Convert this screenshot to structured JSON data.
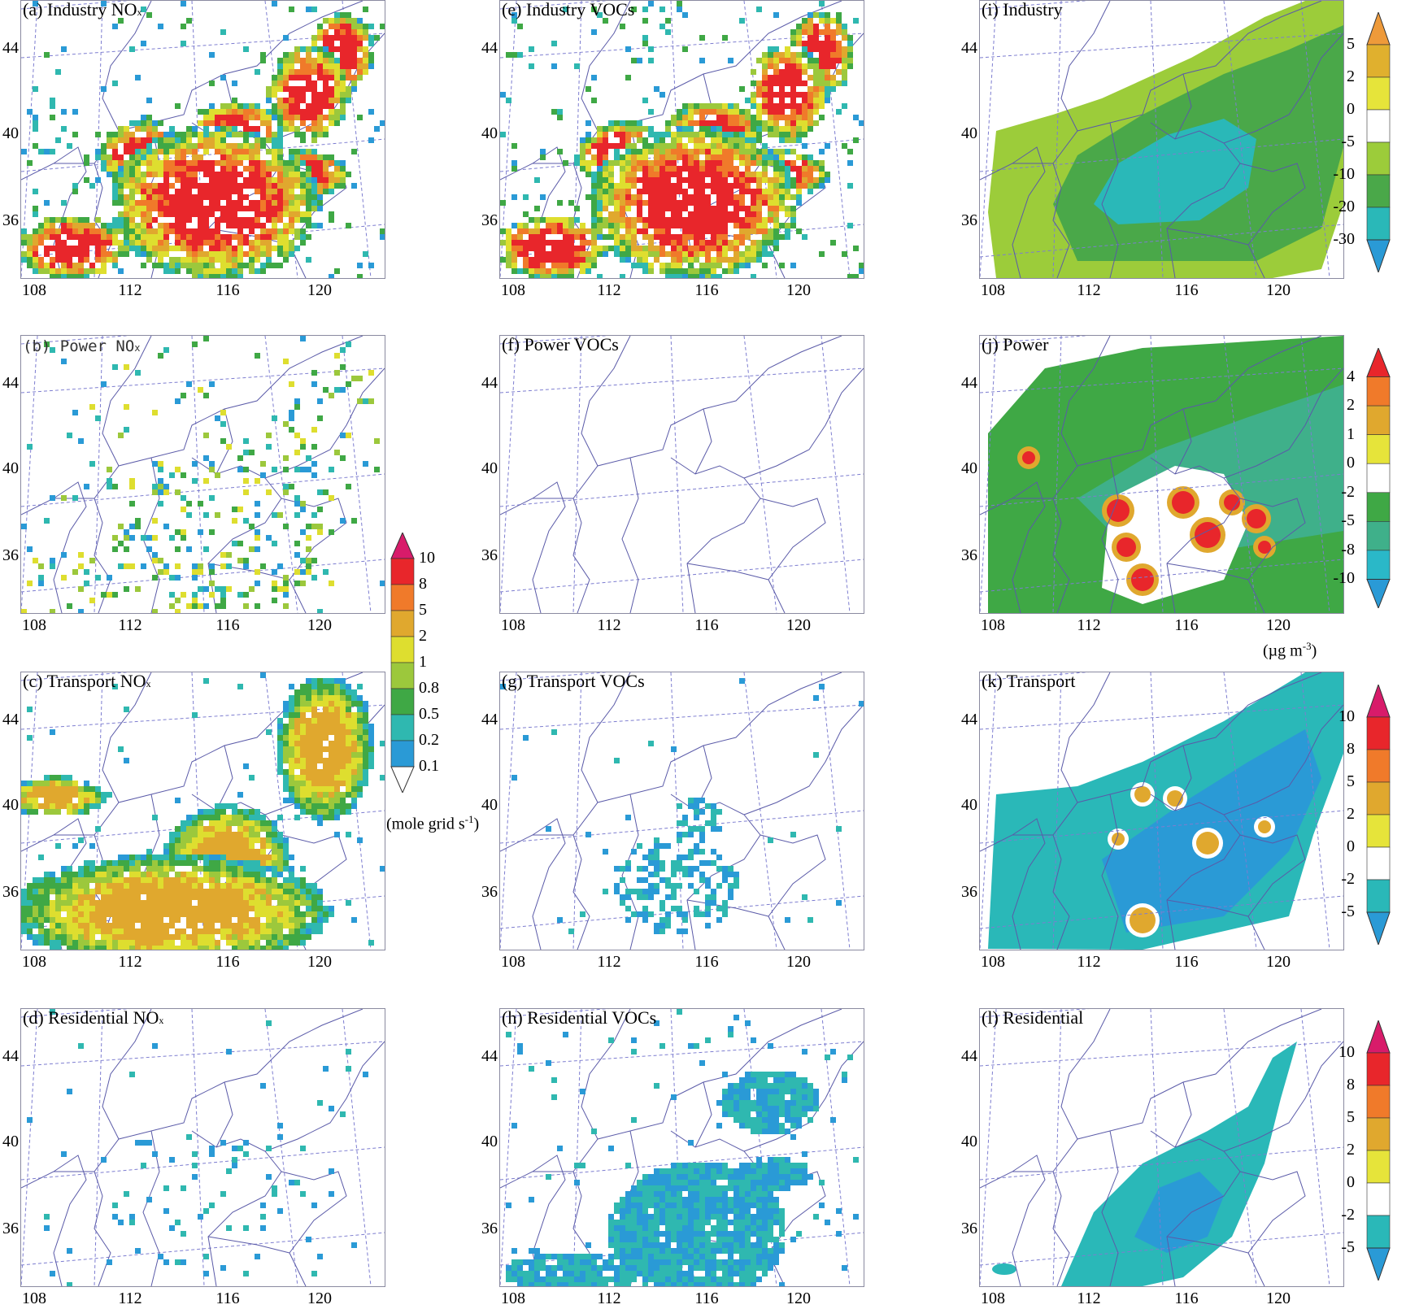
{
  "panels": [
    {
      "key": "a",
      "title": "(a) Industry NO",
      "suffix": "x",
      "kind": "emis_nox",
      "style": "dense"
    },
    {
      "key": "b",
      "title": "(b)  Power NO",
      "suffix": "x",
      "kind": "emis_nox",
      "style": "sparse",
      "mono": true
    },
    {
      "key": "c",
      "title": "(c) Transport NO",
      "suffix": "x",
      "kind": "emis_nox",
      "style": "transport"
    },
    {
      "key": "d",
      "title": "(d) Residential NO",
      "suffix": "x",
      "kind": "emis_nox",
      "style": "veryspare"
    },
    {
      "key": "e",
      "title": "(e) Industry  VOCs",
      "suffix": "",
      "kind": "emis_voc",
      "style": "dense"
    },
    {
      "key": "f",
      "title": "(f) Power VOCs",
      "suffix": "",
      "kind": "emis_voc",
      "style": "empty"
    },
    {
      "key": "g",
      "title": "(g) Transport VOCs",
      "suffix": "",
      "kind": "emis_voc",
      "style": "light"
    },
    {
      "key": "h",
      "title": "(h) Residential VOCs",
      "suffix": "",
      "kind": "emis_voc",
      "style": "residential"
    },
    {
      "key": "i",
      "title": "(i) Industry",
      "suffix": "",
      "kind": "diff",
      "style": "industry"
    },
    {
      "key": "j",
      "title": "(j) Power",
      "suffix": "",
      "kind": "diff",
      "style": "power"
    },
    {
      "key": "k",
      "title": "(k) Transport",
      "suffix": "",
      "kind": "diff",
      "style": "transport"
    },
    {
      "key": "l",
      "title": "(l) Residential",
      "suffix": "",
      "kind": "diff",
      "style": "residential"
    }
  ],
  "axes": {
    "x_ticks": [
      "108",
      "112",
      "116",
      "120"
    ],
    "y_ticks": [
      "44",
      "40",
      "36"
    ]
  },
  "emission_colorbar": {
    "labels": [
      "10",
      "8",
      "5",
      "2",
      "1",
      "0.8",
      "0.5",
      "0.2",
      "0.1"
    ],
    "colors": [
      "#d81b6a",
      "#e8262b",
      "#f07a2a",
      "#e0a82e",
      "#dede2f",
      "#9cc83c",
      "#3fa845",
      "#2fb8b0",
      "#2a9ad6",
      "#ffffff"
    ],
    "unit": "(mole grid s",
    "unit_sup": "-1",
    "unit_end": ")"
  },
  "diff_colorbars": {
    "industry": {
      "labels": [
        "5",
        "2",
        "0",
        "-5",
        "-10",
        "-20",
        "-30"
      ],
      "colors": [
        "#ee9a3a",
        "#e0b02e",
        "#e6e43a",
        "#ffffff",
        "#9ccc3a",
        "#4aa849",
        "#2ab8b8",
        "#2a9ad6"
      ]
    },
    "power": {
      "labels": [
        "4",
        "2",
        "1",
        "0",
        "-2",
        "-5",
        "-8",
        "-10"
      ],
      "colors": [
        "#e8262b",
        "#f07a2a",
        "#e0a82e",
        "#e6e43a",
        "#ffffff",
        "#3fa845",
        "#3fb08a",
        "#2ab8c8",
        "#2a9ad6"
      ]
    },
    "transport": {
      "labels": [
        "10",
        "8",
        "5",
        "2",
        "0",
        "-2",
        "-5"
      ],
      "colors": [
        "#d81b6a",
        "#e8262b",
        "#f07a2a",
        "#e0a82e",
        "#e6e43a",
        "#ffffff",
        "#2ab8b8",
        "#2a9ad6"
      ]
    },
    "residential": {
      "labels": [
        "10",
        "8",
        "5",
        "2",
        "0",
        "-2",
        "-5"
      ],
      "colors": [
        "#d81b6a",
        "#e8262b",
        "#f07a2a",
        "#e0a82e",
        "#e6e43a",
        "#ffffff",
        "#2ab8b8",
        "#2a9ad6"
      ]
    }
  },
  "diff_unit": "(µg m",
  "diff_unit_sup": "-3",
  "diff_unit_end": ")",
  "colors": {
    "border": "#5a5aa8",
    "grid": "#7d7dd0"
  }
}
